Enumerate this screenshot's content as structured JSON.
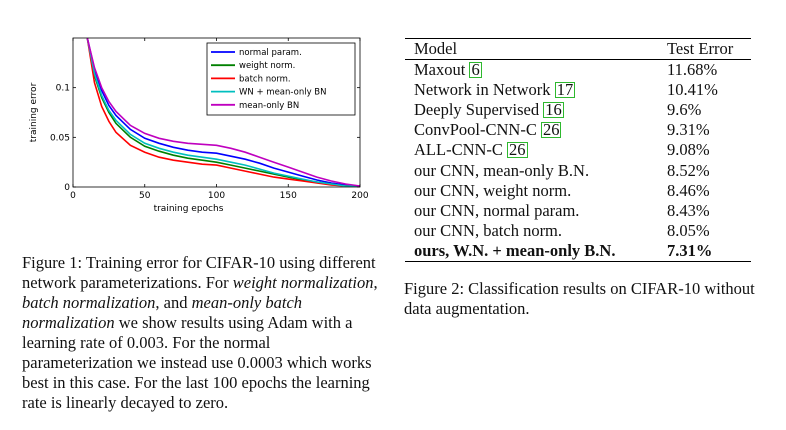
{
  "figure1": {
    "chart_data": {
      "type": "line",
      "xlabel": "training epochs",
      "ylabel": "training error",
      "xlim": [
        0,
        200
      ],
      "ylim": [
        0,
        0.15
      ],
      "xticks": [
        "0",
        "50",
        "100",
        "150",
        "200"
      ],
      "yticks": [
        "0",
        "0.05",
        "0.1"
      ],
      "legend_position": "top-right",
      "series": [
        {
          "name": "normal param.",
          "color": "#0000ff",
          "x": [
            10,
            15,
            20,
            25,
            30,
            40,
            50,
            60,
            70,
            80,
            90,
            100,
            110,
            120,
            130,
            140,
            150,
            160,
            170,
            180,
            190,
            200
          ],
          "y": [
            0.15,
            0.118,
            0.097,
            0.082,
            0.072,
            0.058,
            0.049,
            0.044,
            0.04,
            0.037,
            0.035,
            0.034,
            0.031,
            0.028,
            0.024,
            0.019,
            0.015,
            0.011,
            0.007,
            0.004,
            0.002,
            0.001
          ]
        },
        {
          "name": "weight norm.",
          "color": "#008000",
          "x": [
            10,
            15,
            20,
            25,
            30,
            40,
            50,
            60,
            70,
            80,
            90,
            100,
            110,
            120,
            130,
            140,
            150,
            160,
            170,
            180,
            190,
            200
          ],
          "y": [
            0.15,
            0.112,
            0.09,
            0.075,
            0.064,
            0.05,
            0.041,
            0.036,
            0.032,
            0.029,
            0.027,
            0.025,
            0.022,
            0.019,
            0.016,
            0.013,
            0.01,
            0.007,
            0.005,
            0.003,
            0.001,
            0.0005
          ]
        },
        {
          "name": "batch norm.",
          "color": "#ff0000",
          "x": [
            10,
            15,
            20,
            25,
            30,
            40,
            50,
            60,
            70,
            80,
            90,
            100,
            110,
            120,
            130,
            140,
            150,
            160,
            170,
            180,
            190,
            200
          ],
          "y": [
            0.15,
            0.105,
            0.081,
            0.066,
            0.055,
            0.042,
            0.035,
            0.03,
            0.027,
            0.025,
            0.023,
            0.022,
            0.019,
            0.016,
            0.013,
            0.01,
            0.008,
            0.006,
            0.004,
            0.002,
            0.001,
            0.0003
          ]
        },
        {
          "name": "WN + mean-only BN",
          "color": "#00bfbf",
          "x": [
            10,
            15,
            20,
            25,
            30,
            40,
            50,
            60,
            70,
            80,
            90,
            100,
            110,
            120,
            130,
            140,
            150,
            160,
            170,
            180,
            190,
            200
          ],
          "y": [
            0.15,
            0.114,
            0.092,
            0.077,
            0.067,
            0.053,
            0.044,
            0.039,
            0.035,
            0.032,
            0.03,
            0.028,
            0.025,
            0.022,
            0.018,
            0.014,
            0.011,
            0.008,
            0.005,
            0.003,
            0.001,
            0.0005
          ]
        },
        {
          "name": "mean-only BN",
          "color": "#bf00bf",
          "x": [
            10,
            15,
            20,
            25,
            30,
            40,
            50,
            60,
            70,
            80,
            90,
            100,
            110,
            120,
            130,
            140,
            150,
            160,
            170,
            180,
            190,
            200
          ],
          "y": [
            0.15,
            0.12,
            0.1,
            0.086,
            0.076,
            0.062,
            0.054,
            0.049,
            0.046,
            0.044,
            0.043,
            0.042,
            0.039,
            0.035,
            0.03,
            0.025,
            0.02,
            0.015,
            0.01,
            0.006,
            0.003,
            0.001
          ]
        }
      ]
    },
    "caption_parts": [
      {
        "text": "Figure 1: Training error for CIFAR-10 using different network parameterizations. For ",
        "italic": false
      },
      {
        "text": "weight normalization",
        "italic": true
      },
      {
        "text": ", ",
        "italic": false
      },
      {
        "text": "batch normalization",
        "italic": true
      },
      {
        "text": ", and ",
        "italic": false
      },
      {
        "text": "mean-only batch normalization",
        "italic": true
      },
      {
        "text": " we show results using Adam with a learning rate of 0.003. For the normal parameterization we instead use 0.0003 which works best in this case. For the last 100 epochs the learning rate is linearly decayed to zero.",
        "italic": false
      }
    ]
  },
  "table": {
    "headers": [
      "Model",
      "Test Error"
    ],
    "rows": [
      {
        "model": "Maxout",
        "ref": "6",
        "error": "11.68%",
        "bold": false
      },
      {
        "model": "Network in Network",
        "ref": "17",
        "error": "10.41%",
        "bold": false
      },
      {
        "model": "Deeply Supervised",
        "ref": "16",
        "error": "9.6%",
        "bold": false
      },
      {
        "model": "ConvPool-CNN-C",
        "ref": "26",
        "error": "9.31%",
        "bold": false
      },
      {
        "model": "ALL-CNN-C",
        "ref": "26",
        "error": "9.08%",
        "bold": false
      },
      {
        "model": "our CNN, mean-only B.N.",
        "ref": "",
        "error": "8.52%",
        "bold": false
      },
      {
        "model": "our CNN, weight norm.",
        "ref": "",
        "error": "8.46%",
        "bold": false
      },
      {
        "model": "our CNN, normal param.",
        "ref": "",
        "error": "8.43%",
        "bold": false
      },
      {
        "model": "our CNN, batch norm.",
        "ref": "",
        "error": "8.05%",
        "bold": false
      },
      {
        "model": "ours, W.N. + mean-only B.N.",
        "ref": "",
        "error": "7.31%",
        "bold": true
      }
    ],
    "caption": "Figure 2: Classification results on CIFAR-10 without data augmentation."
  }
}
